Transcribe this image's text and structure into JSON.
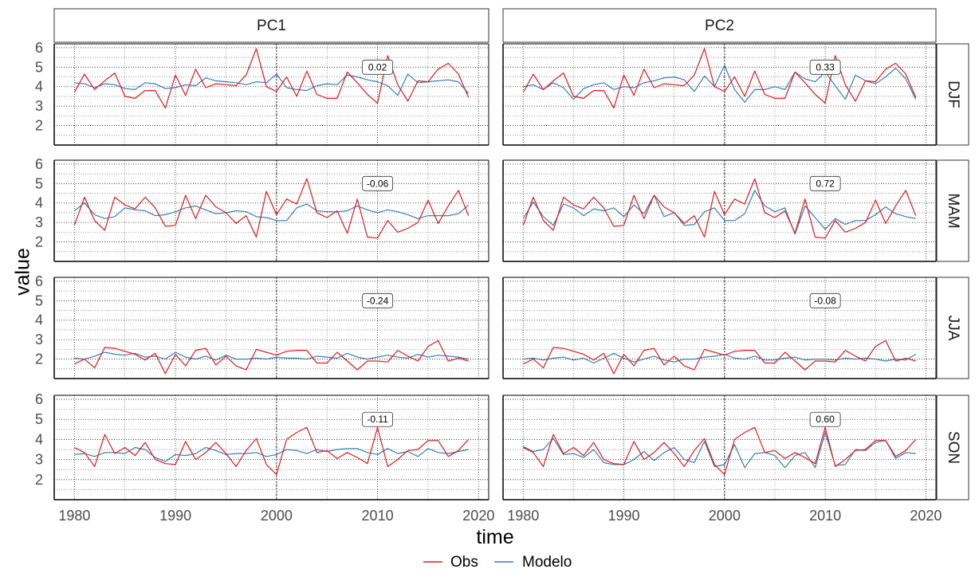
{
  "chart_data": {
    "type": "line",
    "facet_columns": [
      "PC1",
      "PC2"
    ],
    "facet_rows": [
      "DJF",
      "MAM",
      "JJA",
      "SON"
    ],
    "xlabel": "time",
    "ylabel": "value",
    "xlim": [
      1978,
      2021
    ],
    "ylim": [
      1,
      6.2
    ],
    "x_ticks": [
      1980,
      1990,
      2000,
      2010,
      2020
    ],
    "y_ticks": [
      2,
      3,
      4,
      5,
      6
    ],
    "reference_line_x": 2000,
    "grid": "dotted",
    "legend_position": "bottom",
    "series_colors": {
      "Obs": "#e41a1c",
      "Modelo": "#377eb8"
    },
    "legend": [
      {
        "name": "Obs",
        "color": "#e41a1c"
      },
      {
        "name": "Modelo",
        "color": "#377eb8"
      }
    ],
    "years": [
      1980,
      1981,
      1982,
      1983,
      1984,
      1985,
      1986,
      1987,
      1988,
      1989,
      1990,
      1991,
      1992,
      1993,
      1994,
      1995,
      1996,
      1997,
      1998,
      1999,
      2000,
      2001,
      2002,
      2003,
      2004,
      2005,
      2006,
      2007,
      2008,
      2009,
      2010,
      2011,
      2012,
      2013,
      2014,
      2015,
      2016,
      2017,
      2018,
      2019
    ],
    "obs": {
      "DJF": [
        3.7,
        4.65,
        3.85,
        4.3,
        4.7,
        3.5,
        3.4,
        3.8,
        3.8,
        2.9,
        4.6,
        3.55,
        4.9,
        3.95,
        4.15,
        4.1,
        4.05,
        4.6,
        5.95,
        4.0,
        3.75,
        4.5,
        3.5,
        4.8,
        3.6,
        3.4,
        3.4,
        4.75,
        4.2,
        3.6,
        3.15,
        5.6,
        4.1,
        3.25,
        4.3,
        4.25,
        4.9,
        5.2,
        4.65,
        3.45
      ],
      "MAM": [
        2.85,
        4.3,
        3.1,
        2.6,
        4.3,
        3.9,
        3.7,
        4.3,
        3.75,
        2.8,
        2.85,
        4.4,
        3.2,
        4.4,
        3.8,
        3.5,
        2.95,
        3.35,
        2.25,
        4.6,
        3.4,
        4.2,
        3.95,
        5.25,
        3.5,
        3.25,
        3.6,
        2.45,
        4.2,
        2.25,
        2.2,
        3.1,
        2.5,
        2.7,
        3.0,
        4.15,
        2.95,
        3.85,
        4.65,
        3.35
      ],
      "JJA": [
        1.75,
        2.0,
        1.55,
        2.6,
        2.55,
        2.4,
        2.25,
        1.95,
        2.3,
        1.25,
        2.25,
        1.65,
        2.45,
        2.55,
        1.7,
        2.15,
        1.65,
        1.45,
        2.5,
        2.35,
        2.2,
        2.4,
        2.45,
        2.45,
        1.8,
        1.8,
        2.35,
        1.9,
        1.45,
        1.9,
        1.9,
        1.85,
        2.45,
        2.15,
        1.9,
        2.65,
        2.95,
        1.9,
        2.05,
        1.9
      ],
      "SON": [
        3.6,
        3.35,
        2.65,
        4.25,
        3.3,
        3.6,
        3.2,
        3.85,
        3.0,
        2.8,
        2.75,
        3.9,
        3.0,
        3.35,
        3.85,
        3.3,
        2.65,
        3.45,
        4.05,
        2.75,
        2.25,
        4.0,
        4.35,
        4.6,
        3.35,
        3.45,
        3.05,
        3.35,
        3.1,
        2.8,
        4.6,
        2.65,
        3.0,
        3.45,
        3.5,
        3.95,
        3.95,
        3.15,
        3.45,
        4.0
      ]
    },
    "model": {
      "PC1": {
        "DJF": [
          4.2,
          4.15,
          3.95,
          4.15,
          4.1,
          3.9,
          3.85,
          4.2,
          4.15,
          3.9,
          3.95,
          4.1,
          4.05,
          4.45,
          4.3,
          4.25,
          4.2,
          4.1,
          4.25,
          4.2,
          4.65,
          3.95,
          3.85,
          3.8,
          4.05,
          4.15,
          4.1,
          4.6,
          4.5,
          4.35,
          4.25,
          4.05,
          3.55,
          4.65,
          4.2,
          4.25,
          4.3,
          4.35,
          4.25,
          3.65
        ],
        "MAM": [
          3.6,
          4.0,
          3.4,
          3.2,
          3.3,
          3.75,
          3.65,
          3.6,
          3.35,
          3.4,
          3.55,
          3.75,
          3.85,
          3.65,
          3.45,
          3.5,
          3.6,
          3.55,
          3.3,
          3.25,
          3.1,
          3.1,
          3.75,
          3.95,
          3.6,
          3.55,
          3.55,
          3.6,
          3.85,
          3.65,
          3.5,
          3.65,
          3.55,
          3.4,
          3.2,
          3.35,
          3.35,
          3.35,
          3.45,
          3.9
        ],
        "JJA": [
          2.05,
          2.0,
          2.15,
          2.35,
          2.25,
          2.2,
          2.3,
          2.1,
          2.15,
          2.0,
          2.35,
          2.1,
          2.0,
          2.15,
          1.95,
          2.2,
          2.0,
          2.0,
          2.05,
          2.0,
          2.1,
          2.05,
          2.05,
          2.0,
          2.15,
          2.1,
          2.05,
          2.3,
          2.1,
          2.0,
          2.1,
          2.2,
          2.1,
          2.05,
          2.25,
          2.1,
          2.2,
          2.15,
          2.1,
          2.0
        ],
        "SON": [
          3.25,
          3.3,
          3.15,
          3.35,
          3.35,
          3.3,
          3.6,
          3.5,
          3.1,
          2.9,
          3.25,
          3.2,
          3.3,
          3.6,
          3.45,
          3.25,
          3.3,
          3.3,
          3.35,
          3.15,
          3.25,
          3.5,
          3.45,
          3.3,
          3.5,
          3.4,
          3.5,
          3.55,
          3.55,
          3.35,
          3.25,
          3.55,
          3.3,
          3.4,
          3.15,
          3.55,
          3.35,
          3.3,
          3.4,
          3.5
        ]
      },
      "PC2": {
        "DJF": [
          4.0,
          4.1,
          3.85,
          4.2,
          3.95,
          3.35,
          3.9,
          4.1,
          4.2,
          3.85,
          4.0,
          3.95,
          4.2,
          4.3,
          4.45,
          4.5,
          4.35,
          3.75,
          4.55,
          4.0,
          5.1,
          3.85,
          3.2,
          3.85,
          3.85,
          4.0,
          3.85,
          4.75,
          4.4,
          4.25,
          4.75,
          4.05,
          3.35,
          4.6,
          4.3,
          4.15,
          4.5,
          4.95,
          4.4,
          3.35
        ],
        "MAM": [
          3.2,
          4.05,
          3.3,
          2.85,
          3.95,
          3.75,
          3.35,
          3.7,
          3.6,
          3.75,
          3.3,
          3.9,
          3.45,
          4.4,
          3.3,
          3.5,
          2.85,
          2.9,
          3.55,
          3.75,
          3.1,
          3.1,
          3.45,
          4.65,
          3.85,
          3.55,
          3.75,
          2.4,
          3.85,
          3.25,
          2.65,
          3.2,
          2.9,
          3.1,
          3.1,
          3.4,
          3.8,
          3.45,
          3.3,
          3.2
        ],
        "JJA": [
          2.0,
          2.05,
          1.95,
          2.05,
          2.1,
          1.95,
          2.05,
          1.8,
          2.05,
          2.3,
          2.05,
          1.85,
          2.0,
          2.15,
          1.95,
          1.85,
          2.0,
          2.0,
          2.1,
          2.15,
          2.25,
          2.05,
          2.0,
          2.15,
          1.95,
          1.95,
          2.05,
          2.1,
          1.95,
          2.0,
          2.0,
          1.95,
          2.05,
          2.0,
          2.05,
          2.0,
          1.9,
          2.0,
          1.95,
          2.25
        ],
        "SON": [
          3.65,
          3.4,
          3.5,
          4.05,
          3.25,
          3.3,
          3.1,
          3.5,
          2.85,
          2.75,
          2.75,
          3.0,
          3.4,
          2.95,
          3.35,
          3.6,
          3.0,
          2.85,
          3.9,
          2.65,
          2.75,
          3.75,
          2.6,
          3.3,
          3.35,
          3.2,
          2.6,
          3.2,
          3.35,
          2.6,
          4.35,
          2.7,
          2.75,
          3.5,
          3.45,
          3.85,
          3.95,
          3.05,
          3.35,
          3.3
        ]
      }
    },
    "correlations": {
      "PC1": {
        "DJF": "0.02",
        "MAM": "-0.06",
        "JJA": "-0.24",
        "SON": "-0.11"
      },
      "PC2": {
        "DJF": "0.33",
        "MAM": "0.72",
        "JJA": "-0.08",
        "SON": "0.60"
      }
    }
  }
}
